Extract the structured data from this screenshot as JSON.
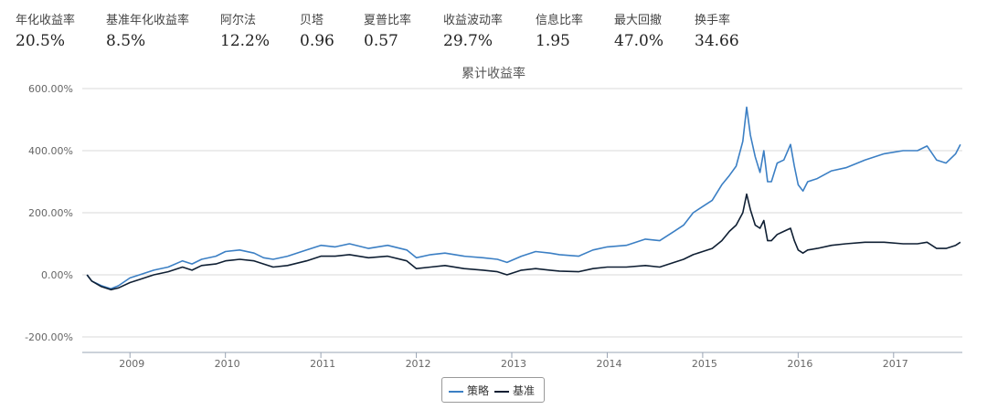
{
  "metrics": [
    {
      "label": "年化收益率",
      "value": "20.5%"
    },
    {
      "label": "基准年化收益率",
      "value": "8.5%"
    },
    {
      "label": "阿尔法",
      "value": "12.2%"
    },
    {
      "label": "贝塔",
      "value": "0.96"
    },
    {
      "label": "夏普比率",
      "value": "0.57"
    },
    {
      "label": "收益波动率",
      "value": "29.7%"
    },
    {
      "label": "信息比率",
      "value": "1.95"
    },
    {
      "label": "最大回撤",
      "value": "47.0%"
    },
    {
      "label": "换手率",
      "value": "34.66"
    }
  ],
  "colors": {
    "strategy": "#3b7fc4",
    "benchmark": "#0f1f33",
    "grid": "#d8d8d8",
    "axis": "#9aa4b4"
  },
  "chart_data": {
    "type": "line",
    "title": "累计收益率",
    "xlabel": "",
    "ylabel": "",
    "ylim": [
      -250,
      600
    ],
    "xlim": [
      2008.5,
      2017.72
    ],
    "yticks": [
      {
        "value": -200,
        "label": "-200.00%"
      },
      {
        "value": 0,
        "label": "0.00%"
      },
      {
        "value": 200,
        "label": "200.00%"
      },
      {
        "value": 400,
        "label": "400.00%"
      },
      {
        "value": 600,
        "label": "600.00%"
      }
    ],
    "xticks": [
      "2009",
      "2010",
      "2011",
      "2012",
      "2013",
      "2014",
      "2015",
      "2016",
      "2017"
    ],
    "grid": true,
    "legend_position": "bottom-center",
    "series": [
      {
        "name": "策略",
        "unit": "%",
        "x": [
          2008.55,
          2008.6,
          2008.7,
          2008.8,
          2008.88,
          2009.0,
          2009.1,
          2009.25,
          2009.4,
          2009.55,
          2009.65,
          2009.75,
          2009.9,
          2010.0,
          2010.15,
          2010.3,
          2010.4,
          2010.5,
          2010.65,
          2010.85,
          2011.0,
          2011.15,
          2011.3,
          2011.5,
          2011.7,
          2011.9,
          2012.0,
          2012.15,
          2012.3,
          2012.5,
          2012.7,
          2012.85,
          2012.95,
          2013.1,
          2013.25,
          2013.4,
          2013.5,
          2013.7,
          2013.85,
          2014.0,
          2014.2,
          2014.4,
          2014.55,
          2014.7,
          2014.8,
          2014.9,
          2015.0,
          2015.1,
          2015.2,
          2015.28,
          2015.35,
          2015.42,
          2015.46,
          2015.5,
          2015.55,
          2015.6,
          2015.64,
          2015.68,
          2015.72,
          2015.78,
          2015.85,
          2015.92,
          2015.96,
          2016.0,
          2016.05,
          2016.1,
          2016.2,
          2016.35,
          2016.5,
          2016.7,
          2016.9,
          2017.1,
          2017.25,
          2017.35,
          2017.45,
          2017.55,
          2017.65,
          2017.7
        ],
        "y": [
          0,
          -20,
          -35,
          -45,
          -35,
          -10,
          0,
          15,
          25,
          45,
          35,
          50,
          60,
          75,
          80,
          70,
          55,
          50,
          60,
          80,
          95,
          90,
          100,
          85,
          95,
          80,
          55,
          65,
          70,
          60,
          55,
          50,
          40,
          60,
          75,
          70,
          65,
          60,
          80,
          90,
          95,
          115,
          110,
          140,
          160,
          200,
          220,
          240,
          290,
          320,
          350,
          430,
          540,
          450,
          380,
          330,
          400,
          300,
          300,
          360,
          370,
          420,
          350,
          290,
          270,
          300,
          310,
          335,
          345,
          370,
          390,
          400,
          400,
          415,
          370,
          360,
          390,
          420
        ]
      },
      {
        "name": "基准",
        "unit": "%",
        "x": [
          2008.55,
          2008.6,
          2008.7,
          2008.8,
          2008.88,
          2009.0,
          2009.1,
          2009.25,
          2009.4,
          2009.55,
          2009.65,
          2009.75,
          2009.9,
          2010.0,
          2010.15,
          2010.3,
          2010.4,
          2010.5,
          2010.65,
          2010.85,
          2011.0,
          2011.15,
          2011.3,
          2011.5,
          2011.7,
          2011.9,
          2012.0,
          2012.15,
          2012.3,
          2012.5,
          2012.7,
          2012.85,
          2012.95,
          2013.1,
          2013.25,
          2013.4,
          2013.5,
          2013.7,
          2013.85,
          2014.0,
          2014.2,
          2014.4,
          2014.55,
          2014.7,
          2014.8,
          2014.9,
          2015.0,
          2015.1,
          2015.2,
          2015.28,
          2015.35,
          2015.42,
          2015.46,
          2015.5,
          2015.55,
          2015.6,
          2015.64,
          2015.68,
          2015.72,
          2015.78,
          2015.85,
          2015.92,
          2015.96,
          2016.0,
          2016.05,
          2016.1,
          2016.2,
          2016.35,
          2016.5,
          2016.7,
          2016.9,
          2017.1,
          2017.25,
          2017.35,
          2017.45,
          2017.55,
          2017.65,
          2017.7
        ],
        "y": [
          0,
          -20,
          -38,
          -48,
          -42,
          -25,
          -15,
          0,
          10,
          25,
          15,
          30,
          35,
          45,
          50,
          45,
          35,
          25,
          30,
          45,
          60,
          60,
          65,
          55,
          60,
          45,
          20,
          25,
          30,
          20,
          15,
          10,
          0,
          15,
          20,
          15,
          12,
          10,
          20,
          25,
          25,
          30,
          25,
          40,
          50,
          65,
          75,
          85,
          110,
          140,
          160,
          200,
          260,
          210,
          160,
          150,
          175,
          110,
          110,
          130,
          140,
          150,
          110,
          80,
          70,
          80,
          85,
          95,
          100,
          105,
          105,
          100,
          100,
          105,
          85,
          85,
          95,
          105
        ]
      }
    ]
  }
}
